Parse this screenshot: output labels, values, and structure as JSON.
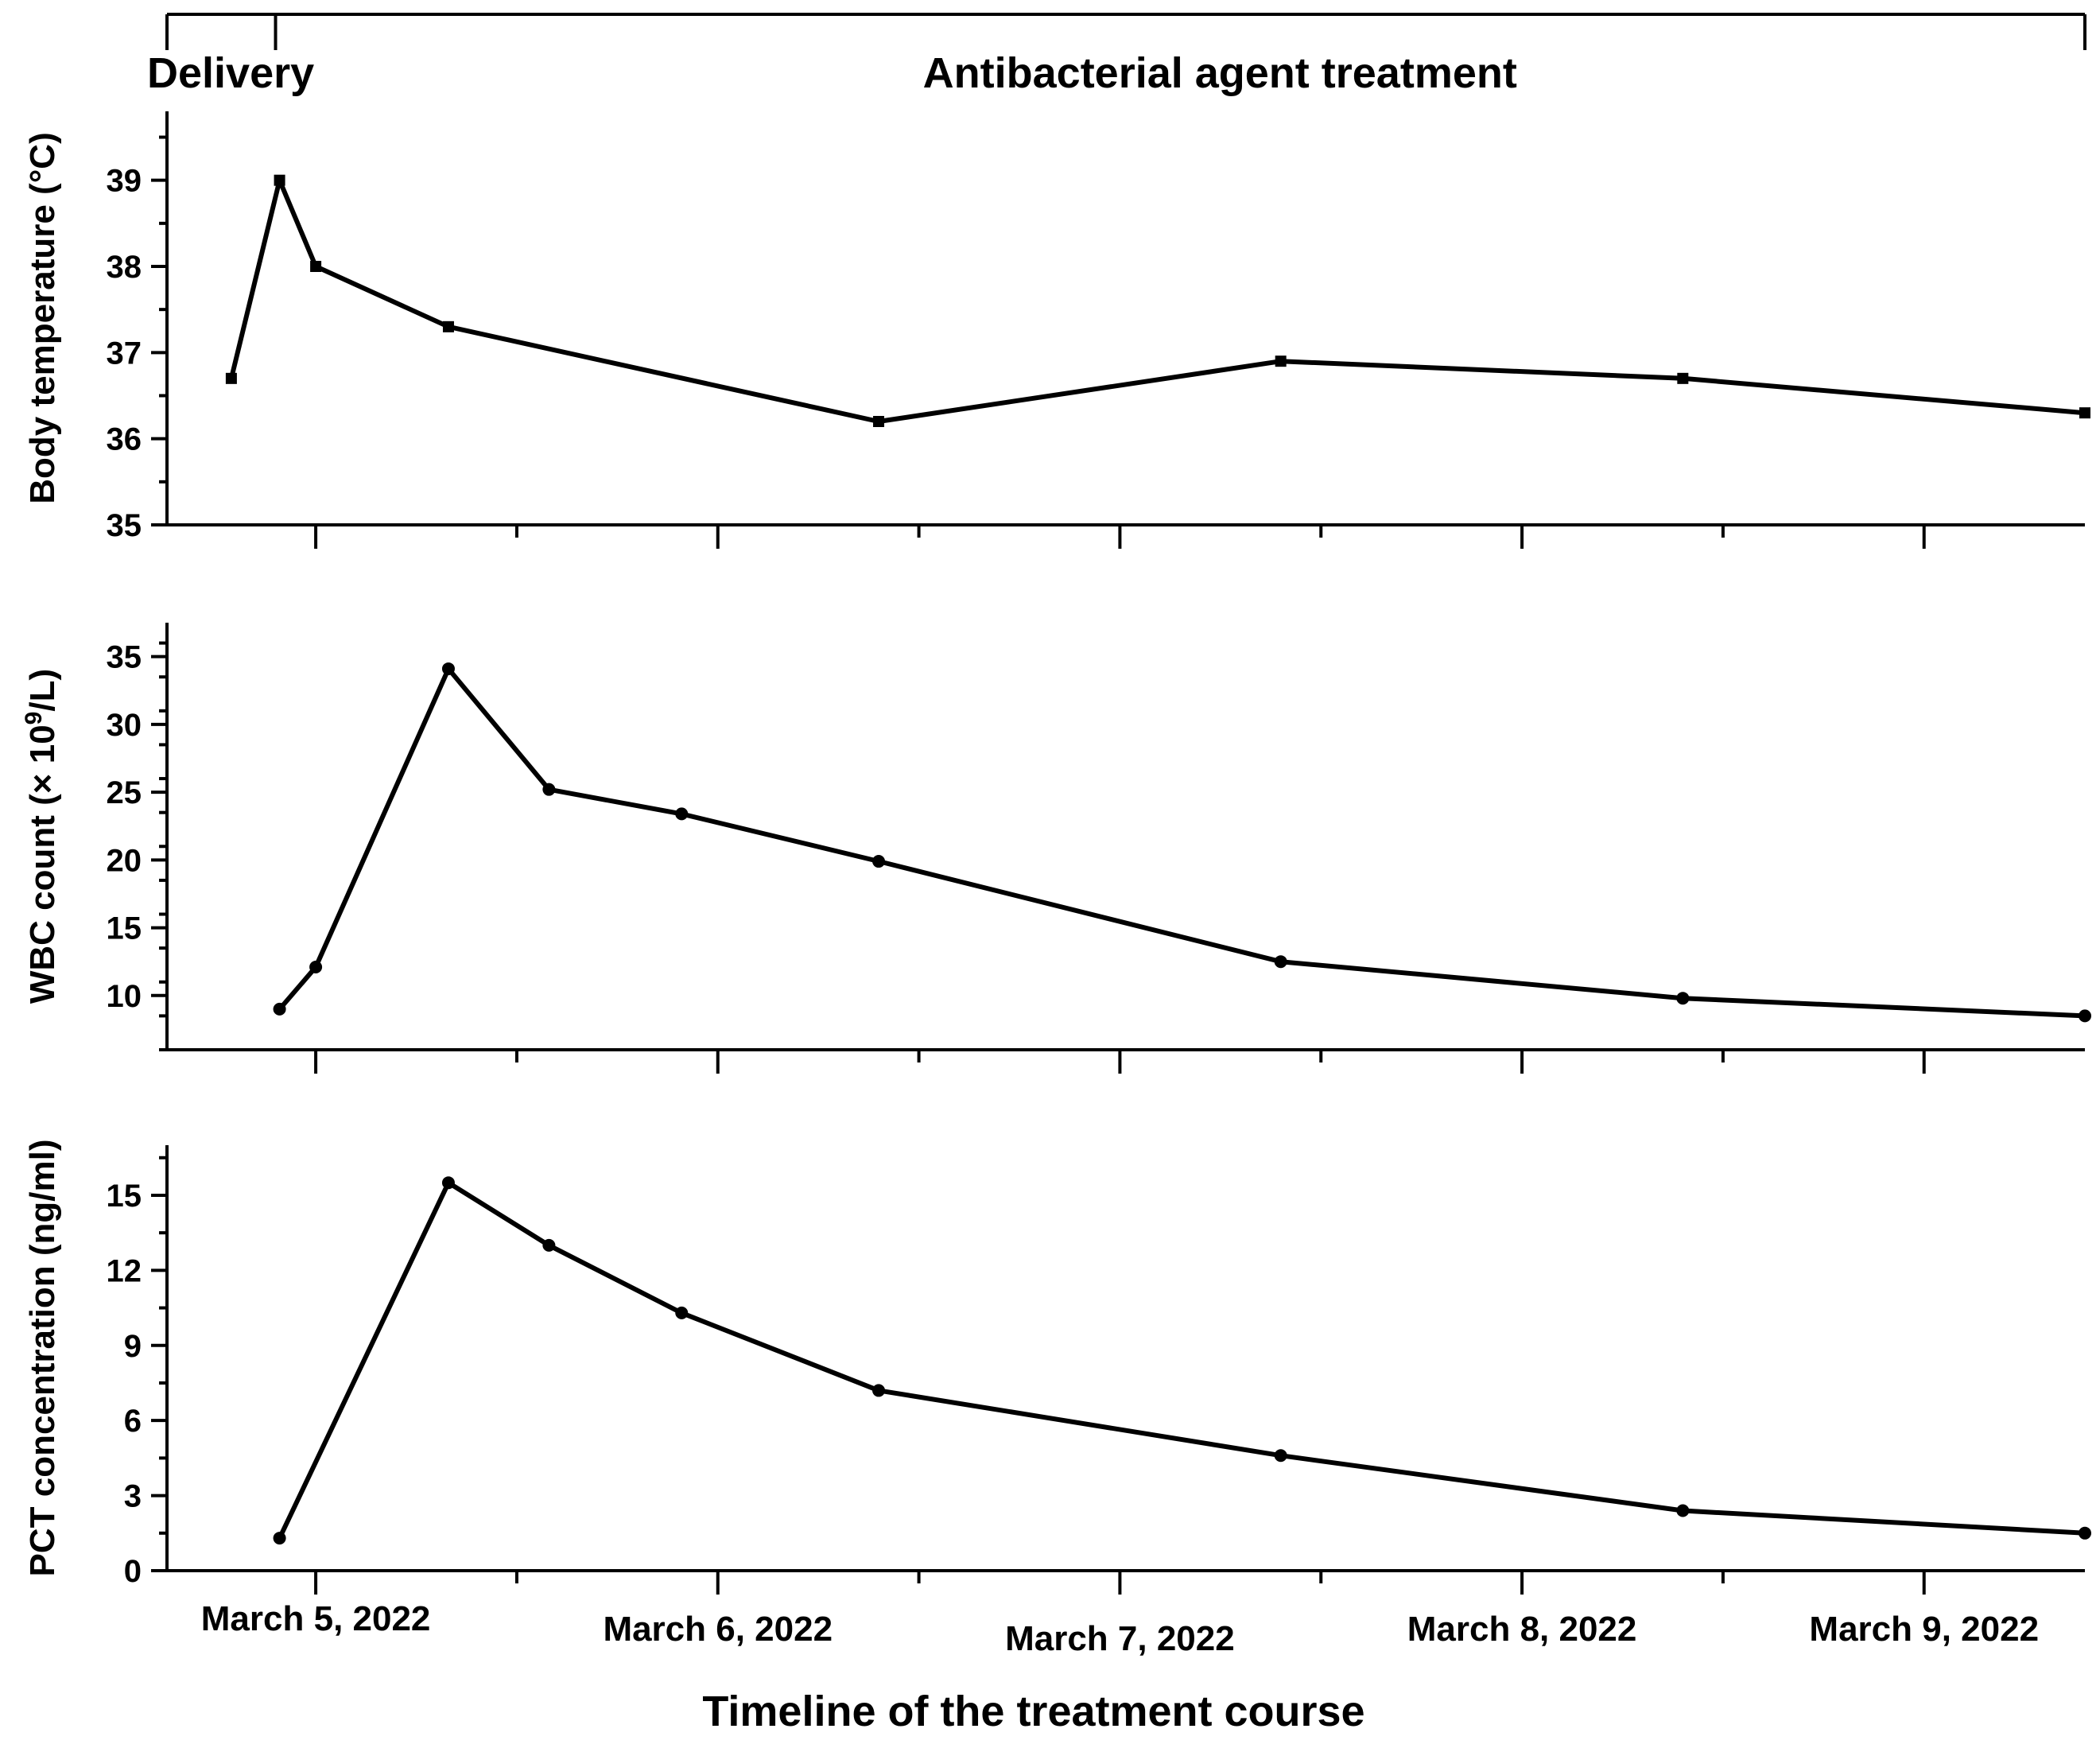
{
  "chart_data": {
    "type": "line",
    "xlabel": "Timeline of the treatment course",
    "x_unit": "day offset from March 5, 2022 (0 = March 5)",
    "xlim": [
      -0.37,
      4.4
    ],
    "x_ticks": [
      {
        "x": 0,
        "label": "March 5, 2022"
      },
      {
        "x": 1,
        "label": "March 6, 2022"
      },
      {
        "x": 2,
        "label": "March 7, 2022"
      },
      {
        "x": 3,
        "label": "March 8, 2022"
      },
      {
        "x": 4,
        "label": "March 9, 2022"
      }
    ],
    "timeline": {
      "delivery_label": "Delivery",
      "treatment_label": "Antibacterial agent treatment",
      "start_x": -0.37,
      "delivery_x": -0.1,
      "end_x": 4.4
    },
    "panels": [
      {
        "name": "temperature",
        "ylabel": "Body temperature (°C)",
        "ylim": [
          35,
          39.8
        ],
        "yticks": [
          35,
          36,
          37,
          38,
          39
        ],
        "minor_step": 0.5,
        "marker": "square",
        "series": [
          {
            "name": "Body temperature",
            "x": [
              -0.21,
              -0.09,
              0.0,
              0.33,
              1.4,
              2.4,
              3.4,
              4.4
            ],
            "values": [
              36.7,
              39.0,
              38.0,
              37.3,
              36.2,
              36.9,
              36.7,
              36.3
            ]
          }
        ]
      },
      {
        "name": "wbc",
        "ylabel": "WBC count (× 10",
        "ylabel_sup": "9",
        "ylabel_tail": "/L)",
        "ylim": [
          6,
          37.5
        ],
        "yticks": [
          10,
          15,
          20,
          25,
          30,
          35
        ],
        "minor_step": 2.5,
        "marker": "circle",
        "series": [
          {
            "name": "WBC count",
            "x": [
              -0.09,
              0.0,
              0.33,
              0.58,
              0.91,
              1.4,
              2.4,
              3.4,
              4.4
            ],
            "values": [
              9.0,
              12.1,
              34.1,
              25.2,
              23.4,
              19.9,
              12.5,
              9.8,
              8.5
            ]
          }
        ]
      },
      {
        "name": "pct",
        "ylabel": "PCT concentration (ng/ml)",
        "ylim": [
          0,
          17
        ],
        "yticks": [
          0,
          3,
          6,
          9,
          12,
          15
        ],
        "minor_step": 1.5,
        "marker": "circle",
        "series": [
          {
            "name": "PCT concentration",
            "x": [
              -0.09,
              0.33,
              0.58,
              0.91,
              1.4,
              2.4,
              3.4,
              4.4
            ],
            "values": [
              1.3,
              15.5,
              13.0,
              10.3,
              7.2,
              4.6,
              2.4,
              1.5
            ]
          }
        ]
      }
    ]
  }
}
